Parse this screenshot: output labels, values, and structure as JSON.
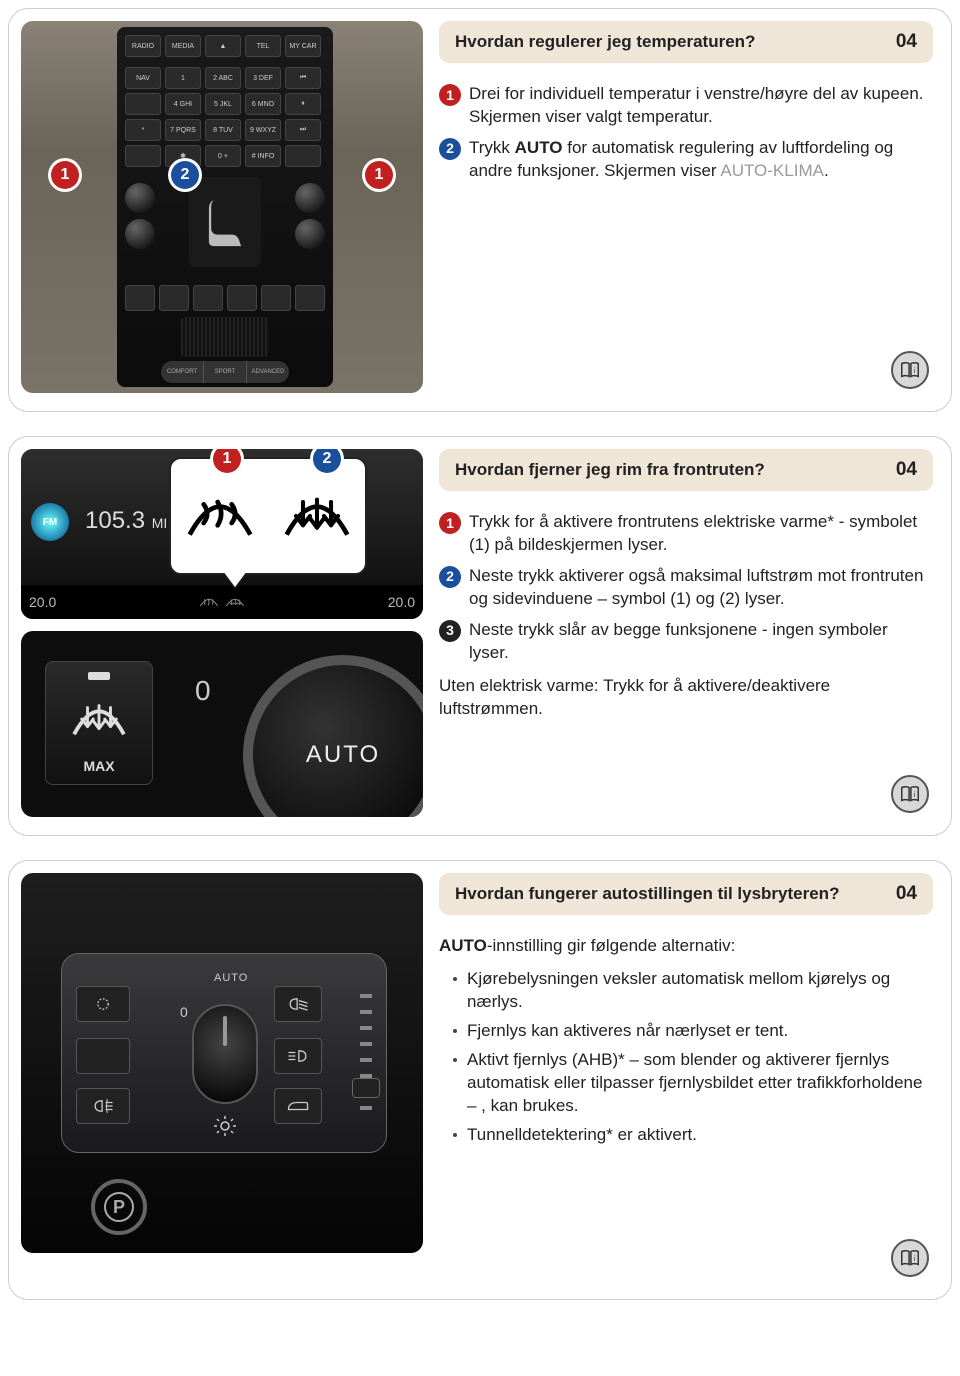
{
  "sections": [
    {
      "title": "Hvordan regulerer jeg temperaturen?",
      "number": "04",
      "items": [
        {
          "color": "c-red",
          "n": "1",
          "text": "Drei for individuell temperatur i venstre/høyre del av kupeen. Skjermen viser valgt temperatur."
        },
        {
          "color": "c-blue",
          "n": "2",
          "html": "Trykk <b>AUTO</b> for automatisk regulering av luftfordeling og andre funksjoner. Skjermen viser <span class='grey'>AUTO-KLIMA</span>."
        }
      ]
    },
    {
      "title": "Hvordan fjerner jeg rim fra frontruten?",
      "number": "04",
      "items": [
        {
          "color": "c-red",
          "n": "1",
          "text": "Trykk for å aktivere frontrutens elektriske varme* - symbolet (1) på bildeskjermen lyser."
        },
        {
          "color": "c-blue",
          "n": "2",
          "text": "Neste trykk aktiverer også maksimal luftstrøm mot frontruten og sidevinduene – symbol (1) og (2) lyser."
        },
        {
          "color": "c-black",
          "n": "3",
          "text": "Neste trykk slår av begge funksjonene - ingen symboler lyser."
        }
      ],
      "plain": "Uten elektrisk varme: Trykk for å aktivere/deaktivere luftstrømmen."
    },
    {
      "title": "Hvordan fungerer autostillingen til lysbryteren?",
      "number": "04",
      "lead_html": "<b>AUTO</b>-innstilling gir følgende alternativ:",
      "bullets": [
        "Kjørebelysningen veksler automatisk mellom kjørelys og nærlys.",
        "Fjernlys kan aktiveres når nærlyset er tent.",
        "Aktivt fjernlys (AHB)* – som blender og aktiverer fjernlys automatisk eller tilpasser fjernlysbildet etter trafikkforholdene – , kan brukes.",
        "Tunnelldetektering* er aktivert."
      ]
    }
  ],
  "img1": {
    "buttons_r1": [
      "RADIO",
      "MEDIA",
      "▲",
      "TEL",
      "MY CAR"
    ],
    "buttons_r2": [
      "NAV",
      "1",
      "2 ABC",
      "3 DEF",
      "⏮"
    ],
    "buttons_r3": [
      "",
      "4 GHI",
      "5 JKL",
      "6 MNO",
      "⏸"
    ],
    "buttons_r4": [
      "*",
      "7 PQRS",
      "8 TUV",
      "9 WXYZ",
      "⏭"
    ],
    "buttons_r5": [
      "",
      "✱",
      "0 +",
      "# INFO",
      ""
    ],
    "pill": [
      "COMFORT",
      "SPORT",
      "ADVANCED"
    ],
    "callouts": [
      "1",
      "2",
      "1"
    ]
  },
  "img2": {
    "fm": "FM",
    "freq": "105.3",
    "mi": "MI",
    "temp_l": "20.0",
    "temp_r": "20.0",
    "max": "MAX",
    "auto": "AUTO",
    "callouts": [
      "1",
      "2"
    ]
  },
  "img3": {
    "auto": "AUTO",
    "zero": "0",
    "park": "P"
  },
  "colors": {
    "red": "#c02020",
    "blue": "#1a4f9c",
    "black": "#222222",
    "title_bg": "#efe6d8",
    "grey_text": "#9a9a9a"
  }
}
